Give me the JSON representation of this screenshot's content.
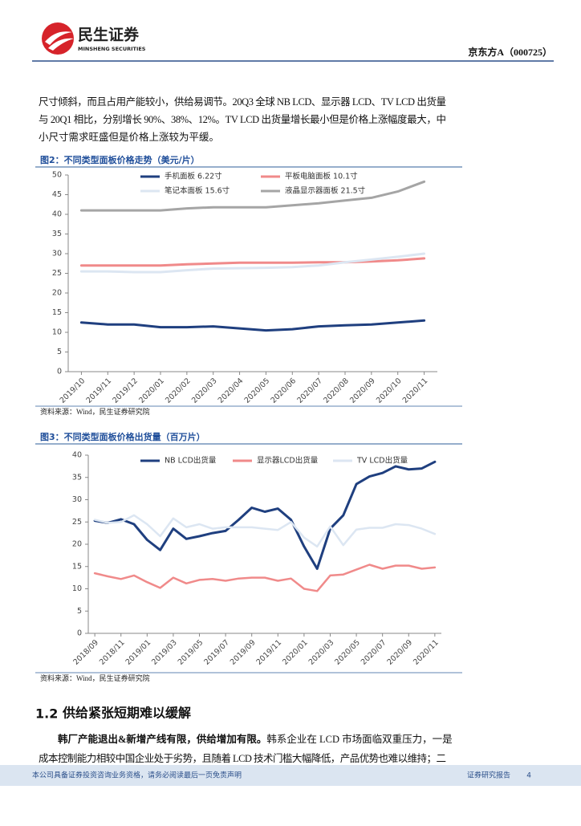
{
  "header": {
    "logo_cn": "民生证券",
    "logo_en": "MINSHENG SECURITIES",
    "company": "京东方A（000725）"
  },
  "paragraph": [
    "尺寸倾斜，而且占用产能较小，供给易调节。20Q3 全球 NB LCD、显示器 LCD、TV LCD 出货量",
    "与 20Q1 相比，分别增长 90%、38%、12%。TV LCD 出货量增长最小但是价格上涨幅度最大，中",
    "小尺寸需求旺盛但是价格上涨较为平缓。"
  ],
  "chart_data": [
    {
      "type": "line",
      "title": "图2：不同类型面板价格走势（美元/片）",
      "source": "资料来源：Wind，民生证券研究院",
      "categories": [
        "2019/10",
        "2019/11",
        "2019/12",
        "2020/01",
        "2020/02",
        "2020/03",
        "2020/04",
        "2020/05",
        "2020/06",
        "2020/07",
        "2020/08",
        "2020/09",
        "2020/10",
        "2020/11"
      ],
      "series": [
        {
          "name": "手机面板 6.22寸",
          "color": "#1f3f7f",
          "values": [
            12.5,
            12,
            12,
            11.3,
            11.3,
            11.5,
            11,
            10.5,
            10.8,
            11.5,
            11.8,
            12,
            12.5,
            13
          ]
        },
        {
          "name": "平板电脑面板 10.1寸",
          "color": "#f08a8a",
          "values": [
            27,
            27,
            27,
            27,
            27.3,
            27.5,
            27.7,
            27.7,
            27.7,
            27.8,
            27.8,
            28,
            28.3,
            28.8
          ]
        },
        {
          "name": "笔记本面板 15.6寸",
          "color": "#dce6f2",
          "values": [
            25.5,
            25.5,
            25.3,
            25.3,
            25.8,
            26.2,
            26.3,
            26.4,
            26.6,
            27,
            27.8,
            28.5,
            29.2,
            30
          ]
        },
        {
          "name": "液晶显示器面板 21.5寸",
          "color": "#a5a5a5",
          "values": [
            41,
            41,
            41,
            41,
            41.5,
            41.8,
            41.8,
            41.8,
            42.3,
            42.8,
            43.5,
            44.2,
            45.8,
            48.3
          ]
        }
      ],
      "ylim": [
        0,
        50
      ],
      "yticks": [
        0,
        5,
        10,
        15,
        20,
        25,
        30,
        35,
        40,
        45,
        50
      ]
    },
    {
      "type": "line",
      "title": "图3：不同类型面板价格出货量（百万片）",
      "source": "资料来源：Wind，民生证券研究院",
      "categories": [
        "2018/09",
        null,
        "2018/11",
        null,
        "2019/01",
        null,
        "2019/03",
        null,
        "2019/05",
        null,
        "2019/07",
        null,
        "2019/09",
        null,
        "2019/11",
        null,
        "2020/01",
        null,
        "2020/03",
        null,
        "2020/05",
        null,
        "2020/07",
        null,
        "2020/09",
        null,
        "2020/11"
      ],
      "series": [
        {
          "name": "NB LCD出货量",
          "color": "#1f3f7f",
          "values": [
            25.3,
            24.8,
            25.6,
            24.5,
            21,
            18.7,
            23.5,
            21.2,
            21.8,
            22.5,
            23,
            25.5,
            28.2,
            27.3,
            28,
            25.5,
            19.5,
            14.5,
            23.5,
            26.5,
            33.5,
            35.2,
            36,
            37.5,
            36.8,
            37,
            38.5
          ]
        },
        {
          "name": "显示器LCD出货量",
          "color": "#f08a8a",
          "values": [
            13.5,
            12.8,
            12.2,
            13,
            11.5,
            10.2,
            12.5,
            11.2,
            12,
            12.2,
            11.8,
            12.3,
            12.5,
            12.5,
            11.8,
            12.3,
            10,
            9.5,
            13,
            13.2,
            14.3,
            15.4,
            14.5,
            15.2,
            15.2,
            14.5,
            14.8
          ]
        },
        {
          "name": "TV LCD出货量",
          "color": "#dce6f2",
          "values": [
            25.5,
            24.8,
            25,
            26.5,
            24.5,
            21.8,
            25.8,
            23.8,
            24.5,
            23.5,
            23.8,
            23.8,
            23.8,
            23.5,
            23.2,
            25,
            21.5,
            19.5,
            24,
            19.8,
            23.3,
            23.7,
            23.7,
            24.5,
            24.3,
            23.5,
            22.3
          ]
        }
      ],
      "ylim": [
        0,
        40
      ],
      "yticks": [
        0,
        5,
        10,
        15,
        20,
        25,
        30,
        35,
        40
      ]
    }
  ],
  "section": {
    "number": "1.2",
    "title": "供给紧张短期难以缓解",
    "lead": "韩厂产能退出&新增产线有限，供给增加有限。",
    "lines": [
      "韩系企业在 LCD 市场面临双重压力，一是",
      "成本控制能力相较中国企业处于劣势，且随着 LCD 技术门槛大幅降低，产品优势也难以维持；二"
    ]
  },
  "footer": {
    "disclaimer": "本公司具备证券投资咨询业务资格，请务必阅读最后一页免责声明",
    "label": "证券研究报告",
    "page": "4"
  }
}
